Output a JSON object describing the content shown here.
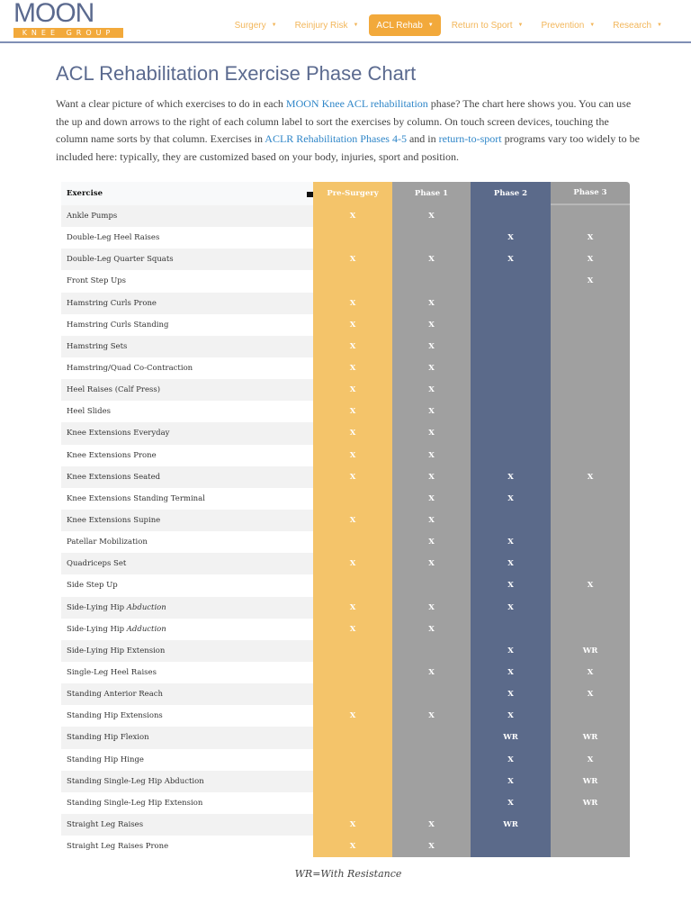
{
  "logo": {
    "main": "MOON",
    "sub": "KNEE GROUP"
  },
  "nav": [
    {
      "label": "Surgery"
    },
    {
      "label": "Reinjury Risk"
    },
    {
      "label": "ACL Rehab",
      "active": true
    },
    {
      "label": "Return to Sport"
    },
    {
      "label": "Prevention"
    },
    {
      "label": "Research"
    }
  ],
  "title": "ACL Rehabilitation Exercise Phase Chart",
  "intro": {
    "t1": "Want a clear picture of which exercises to do in each ",
    "l1": "MOON Knee ACL rehabilitation",
    "t2": " phase? The chart here shows you. You can use the up and down arrows to the right of each column label to sort the exercises by column. On touch screen devices, touching the column name sorts by that column. Exercises in ",
    "l2": "ACLR Rehabilitation Phases 4-5",
    "t3": " and in ",
    "l3": "return-to-sport",
    "t4": " programs vary too widely to be included here: typically, they are customized based on your body, injuries, sport and position."
  },
  "table": {
    "headers": [
      "Exercise",
      "Pre-Surgery",
      "Phase 1",
      "Phase 2",
      "Phase 3"
    ],
    "rows": [
      {
        "name": "Ankle Pumps",
        "cells": [
          "X",
          "X",
          "",
          ""
        ]
      },
      {
        "name": "Double-Leg Heel Raises",
        "cells": [
          "",
          "",
          "X",
          "X"
        ]
      },
      {
        "name": "Double-Leg Quarter Squats",
        "cells": [
          "X",
          "X",
          "X",
          "X"
        ]
      },
      {
        "name": "Front Step Ups",
        "cells": [
          "",
          "",
          "",
          "X"
        ]
      },
      {
        "name": "Hamstring Curls Prone",
        "cells": [
          "X",
          "X",
          "",
          ""
        ]
      },
      {
        "name": "Hamstring Curls Standing",
        "cells": [
          "X",
          "X",
          "",
          ""
        ]
      },
      {
        "name": "Hamstring Sets",
        "cells": [
          "X",
          "X",
          "",
          ""
        ]
      },
      {
        "name": "Hamstring/Quad Co-Contraction",
        "cells": [
          "X",
          "X",
          "",
          ""
        ]
      },
      {
        "name": "Heel Raises (Calf Press)",
        "cells": [
          "X",
          "X",
          "",
          ""
        ]
      },
      {
        "name": "Heel Slides",
        "cells": [
          "X",
          "X",
          "",
          ""
        ]
      },
      {
        "name": "Knee Extensions Everyday",
        "cells": [
          "X",
          "X",
          "",
          ""
        ]
      },
      {
        "name": "Knee Extensions Prone",
        "cells": [
          "X",
          "X",
          "",
          ""
        ]
      },
      {
        "name": "Knee Extensions Seated",
        "cells": [
          "X",
          "X",
          "X",
          "X"
        ]
      },
      {
        "name": "Knee Extensions Standing Terminal",
        "cells": [
          "",
          "X",
          "X",
          ""
        ]
      },
      {
        "name": "Knee Extensions Supine",
        "cells": [
          "X",
          "X",
          "",
          ""
        ]
      },
      {
        "name": "Patellar Mobilization",
        "cells": [
          "",
          "X",
          "X",
          ""
        ]
      },
      {
        "name": "Quadriceps Set",
        "cells": [
          "X",
          "X",
          "X",
          ""
        ]
      },
      {
        "name": "Side Step Up",
        "cells": [
          "",
          "",
          "X",
          "X"
        ]
      },
      {
        "name": "Side-Lying Hip ",
        "italic": "Abduction",
        "cells": [
          "X",
          "X",
          "X",
          ""
        ]
      },
      {
        "name": "Side-Lying Hip ",
        "italic": "Adduction",
        "cells": [
          "X",
          "X",
          "",
          ""
        ]
      },
      {
        "name": "Side-Lying Hip Extension",
        "cells": [
          "",
          "",
          "X",
          "WR"
        ]
      },
      {
        "name": "Single-Leg Heel Raises",
        "cells": [
          "",
          "X",
          "X",
          "X"
        ]
      },
      {
        "name": "Standing Anterior Reach",
        "cells": [
          "",
          "",
          "X",
          "X"
        ]
      },
      {
        "name": "Standing Hip Extensions",
        "cells": [
          "X",
          "X",
          "X",
          ""
        ]
      },
      {
        "name": "Standing Hip Flexion",
        "cells": [
          "",
          "",
          "WR",
          "WR"
        ]
      },
      {
        "name": "Standing Hip Hinge",
        "cells": [
          "",
          "",
          "X",
          "X"
        ]
      },
      {
        "name": "Standing Single-Leg Hip Abduction",
        "cells": [
          "",
          "",
          "X",
          "WR"
        ]
      },
      {
        "name": "Standing Single-Leg Hip Extension",
        "cells": [
          "",
          "",
          "X",
          "WR"
        ]
      },
      {
        "name": "Straight Leg Raises",
        "cells": [
          "X",
          "X",
          "WR",
          ""
        ]
      },
      {
        "name": "Straight Leg Raises Prone",
        "cells": [
          "X",
          "X",
          "",
          ""
        ]
      }
    ]
  },
  "footnote": "WR=With Resistance"
}
